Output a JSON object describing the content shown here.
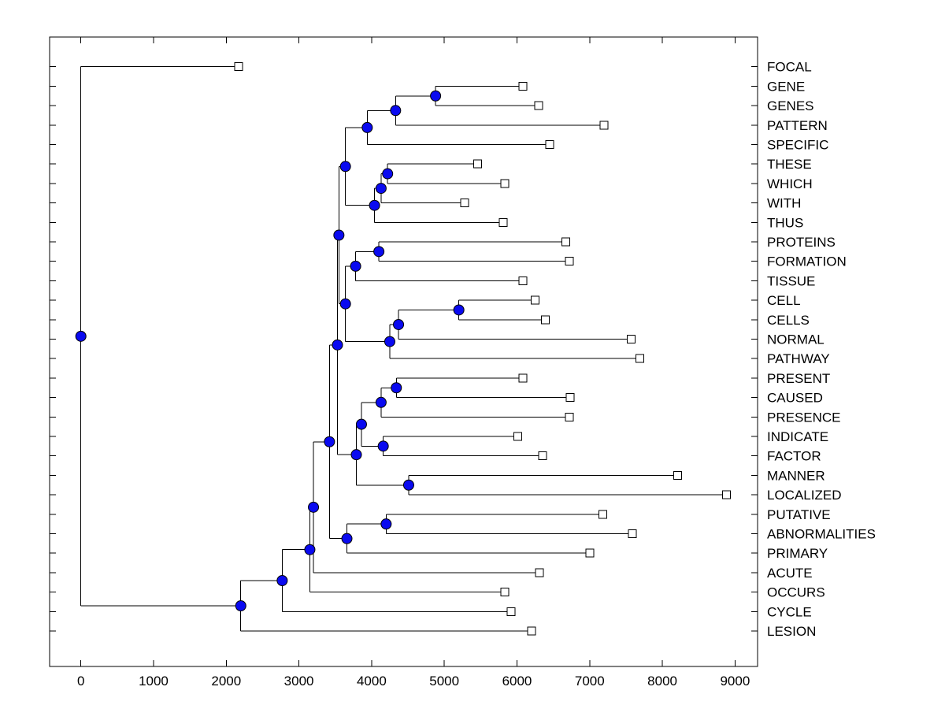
{
  "figure": {
    "background": "#ffffff",
    "line_color": "#000000",
    "node_dot_color": "#0a0af0",
    "node_dot_edge_color": "#000000",
    "leaf_square_fill": "#ffffff",
    "leaf_square_edge_color": "#000000",
    "title": ""
  },
  "chart_data": {
    "type": "dendrogram",
    "subtype": "phylogenetic-tree-horizontal",
    "title": "",
    "xlabel": "",
    "ylabel": "",
    "grid": false,
    "legend": null,
    "xlim": [
      -430,
      9310
    ],
    "x_ticks": [
      0,
      1000,
      2000,
      3000,
      4000,
      5000,
      6000,
      7000,
      8000,
      9000
    ],
    "leaf_count": 30,
    "leaves": [
      {
        "label": "FOCAL",
        "x": 2170
      },
      {
        "label": "GENE",
        "x": 6080
      },
      {
        "label": "GENES",
        "x": 6300
      },
      {
        "label": "PATTERN",
        "x": 7200
      },
      {
        "label": "SPECIFIC",
        "x": 6450
      },
      {
        "label": "THESE",
        "x": 5460
      },
      {
        "label": "WHICH",
        "x": 5830
      },
      {
        "label": "WITH",
        "x": 5280
      },
      {
        "label": "THUS",
        "x": 5810
      },
      {
        "label": "PROTEINS",
        "x": 6670
      },
      {
        "label": "FORMATION",
        "x": 6720
      },
      {
        "label": "TISSUE",
        "x": 6080
      },
      {
        "label": "CELL",
        "x": 6250
      },
      {
        "label": "CELLS",
        "x": 6390
      },
      {
        "label": "NORMAL",
        "x": 7570
      },
      {
        "label": "PATHWAY",
        "x": 7690
      },
      {
        "label": "PRESENT",
        "x": 6080
      },
      {
        "label": "CAUSED",
        "x": 6730
      },
      {
        "label": "PRESENCE",
        "x": 6720
      },
      {
        "label": "INDICATE",
        "x": 6010
      },
      {
        "label": "FACTOR",
        "x": 6350
      },
      {
        "label": "MANNER",
        "x": 8210
      },
      {
        "label": "LOCALIZED",
        "x": 8880
      },
      {
        "label": "PUTATIVE",
        "x": 7180
      },
      {
        "label": "ABNORMALITIES",
        "x": 7590
      },
      {
        "label": "PRIMARY",
        "x": 7000
      },
      {
        "label": "ACUTE",
        "x": 6310
      },
      {
        "label": "OCCURS",
        "x": 5830
      },
      {
        "label": "CYCLE",
        "x": 5920
      },
      {
        "label": "LESION",
        "x": 6200
      }
    ],
    "nodes": [
      {
        "id": "n-gene-genes",
        "x": 4880,
        "children": [
          "GENE",
          "GENES"
        ]
      },
      {
        "id": "n-pattern",
        "x": 4330,
        "children": [
          "n-gene-genes",
          "PATTERN"
        ]
      },
      {
        "id": "n-specific",
        "x": 3940,
        "children": [
          "n-pattern",
          "SPECIFIC"
        ]
      },
      {
        "id": "n-these-which",
        "x": 4220,
        "children": [
          "THESE",
          "WHICH"
        ]
      },
      {
        "id": "n-with",
        "x": 4130,
        "children": [
          "n-these-which",
          "WITH"
        ]
      },
      {
        "id": "n-thus",
        "x": 4040,
        "children": [
          "n-with",
          "THUS"
        ]
      },
      {
        "id": "n-upper",
        "x": 3640,
        "children": [
          "n-specific",
          "n-thus"
        ]
      },
      {
        "id": "n-prot-form",
        "x": 4100,
        "children": [
          "PROTEINS",
          "FORMATION"
        ]
      },
      {
        "id": "n-tissue",
        "x": 3780,
        "children": [
          "n-prot-form",
          "TISSUE"
        ]
      },
      {
        "id": "n-cell-cells",
        "x": 5200,
        "children": [
          "CELL",
          "CELLS"
        ]
      },
      {
        "id": "n-normal",
        "x": 4370,
        "children": [
          "n-cell-cells",
          "NORMAL"
        ]
      },
      {
        "id": "n-pathway",
        "x": 4250,
        "children": [
          "n-normal",
          "PATHWAY"
        ]
      },
      {
        "id": "n-mid",
        "x": 3640,
        "children": [
          "n-tissue",
          "n-pathway"
        ]
      },
      {
        "id": "n-upper-mid",
        "x": 3550,
        "children": [
          "n-upper",
          "n-mid"
        ]
      },
      {
        "id": "n-present-caused",
        "x": 4340,
        "children": [
          "PRESENT",
          "CAUSED"
        ]
      },
      {
        "id": "n-presence",
        "x": 4130,
        "children": [
          "n-present-caused",
          "PRESENCE"
        ]
      },
      {
        "id": "n-indicate-factor",
        "x": 4160,
        "children": [
          "INDICATE",
          "FACTOR"
        ]
      },
      {
        "id": "n-pres-cluster",
        "x": 3860,
        "children": [
          "n-presence",
          "n-indicate-factor"
        ]
      },
      {
        "id": "n-manner-localized",
        "x": 4510,
        "children": [
          "MANNER",
          "LOCALIZED"
        ]
      },
      {
        "id": "n-pres-manner",
        "x": 3790,
        "children": [
          "n-pres-cluster",
          "n-manner-localized"
        ]
      },
      {
        "id": "n-big-mid",
        "x": 3530,
        "children": [
          "n-upper-mid",
          "n-pres-manner"
        ]
      },
      {
        "id": "n-putative-abnorm",
        "x": 4200,
        "children": [
          "PUTATIVE",
          "ABNORMALITIES"
        ]
      },
      {
        "id": "n-primary",
        "x": 3660,
        "children": [
          "n-putative-abnorm",
          "PRIMARY"
        ]
      },
      {
        "id": "n-mid-primary",
        "x": 3420,
        "children": [
          "n-big-mid",
          "n-primary"
        ]
      },
      {
        "id": "n-acute",
        "x": 3200,
        "children": [
          "n-mid-primary",
          "ACUTE"
        ]
      },
      {
        "id": "n-occurs",
        "x": 3150,
        "children": [
          "n-acute",
          "OCCURS"
        ]
      },
      {
        "id": "n-cycle",
        "x": 2770,
        "children": [
          "n-occurs",
          "CYCLE"
        ]
      },
      {
        "id": "n-lesion",
        "x": 2200,
        "children": [
          "n-cycle",
          "LESION"
        ]
      },
      {
        "id": "root",
        "x": 0,
        "children": [
          "FOCAL",
          "n-lesion"
        ]
      }
    ]
  }
}
